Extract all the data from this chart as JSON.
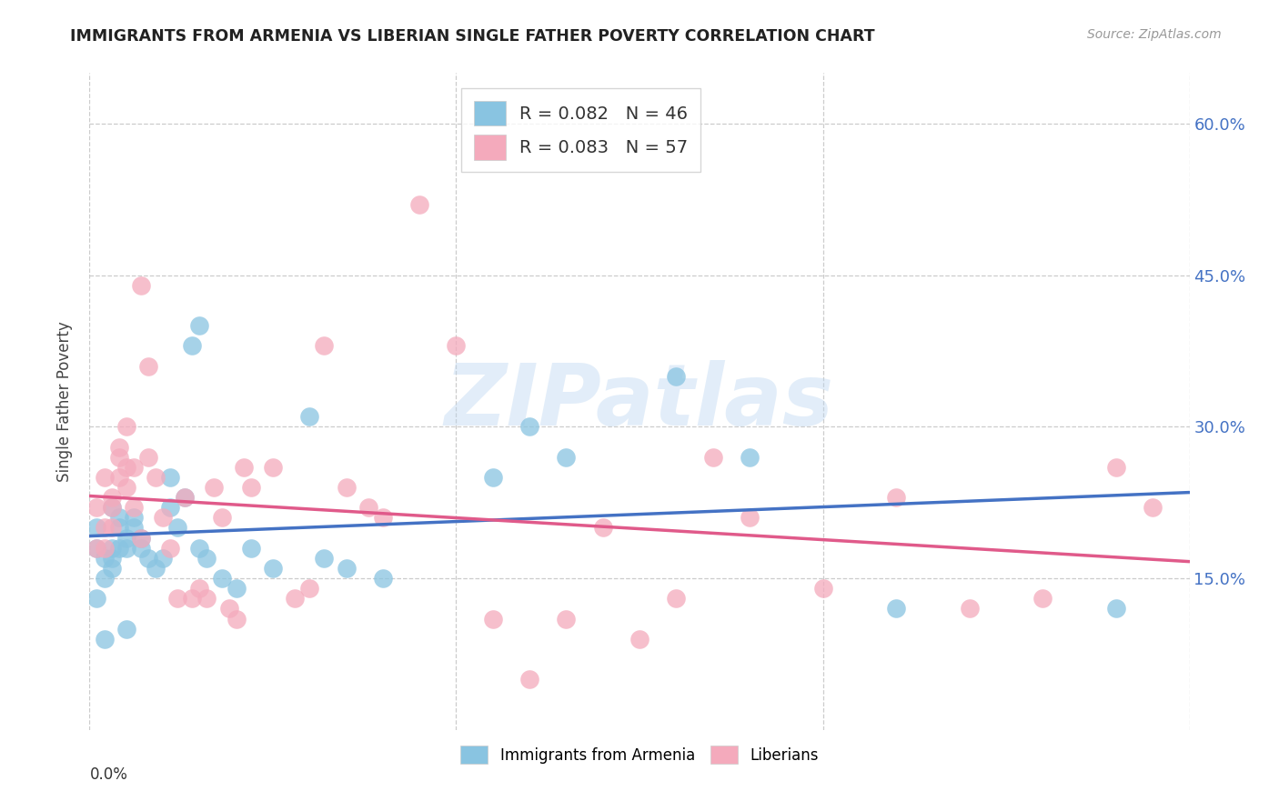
{
  "title": "IMMIGRANTS FROM ARMENIA VS LIBERIAN SINGLE FATHER POVERTY CORRELATION CHART",
  "source": "Source: ZipAtlas.com",
  "ylabel": "Single Father Poverty",
  "yaxis_labels": [
    "15.0%",
    "30.0%",
    "45.0%",
    "60.0%"
  ],
  "yaxis_values": [
    0.15,
    0.3,
    0.45,
    0.6
  ],
  "xlim": [
    0.0,
    0.15
  ],
  "ylim": [
    0.0,
    0.65
  ],
  "color_armenia": "#89c4e1",
  "color_liberian": "#f4aabc",
  "color_armenia_line": "#4472c4",
  "color_liberian_line": "#e05a8a",
  "color_axis_labels": "#4472c4",
  "watermark_text": "ZIPatlas",
  "legend_entries": [
    {
      "color": "#89c4e1",
      "label": "R = 0.082   N = 46"
    },
    {
      "color": "#f4aabc",
      "label": "R = 0.083   N = 57"
    }
  ],
  "bottom_legend": [
    {
      "color": "#89c4e1",
      "label": "Immigrants from Armenia"
    },
    {
      "color": "#f4aabc",
      "label": "Liberians"
    }
  ],
  "armenia_x": [
    0.001,
    0.001,
    0.001,
    0.002,
    0.002,
    0.002,
    0.003,
    0.003,
    0.003,
    0.003,
    0.004,
    0.004,
    0.004,
    0.005,
    0.005,
    0.005,
    0.006,
    0.006,
    0.007,
    0.007,
    0.008,
    0.009,
    0.01,
    0.011,
    0.011,
    0.012,
    0.013,
    0.014,
    0.015,
    0.015,
    0.016,
    0.018,
    0.02,
    0.022,
    0.025,
    0.03,
    0.032,
    0.035,
    0.04,
    0.055,
    0.06,
    0.065,
    0.08,
    0.09,
    0.11,
    0.14
  ],
  "armenia_y": [
    0.2,
    0.18,
    0.13,
    0.17,
    0.15,
    0.09,
    0.18,
    0.17,
    0.16,
    0.22,
    0.2,
    0.18,
    0.21,
    0.1,
    0.18,
    0.19,
    0.2,
    0.21,
    0.19,
    0.18,
    0.17,
    0.16,
    0.17,
    0.22,
    0.25,
    0.2,
    0.23,
    0.38,
    0.4,
    0.18,
    0.17,
    0.15,
    0.14,
    0.18,
    0.16,
    0.31,
    0.17,
    0.16,
    0.15,
    0.25,
    0.3,
    0.27,
    0.35,
    0.27,
    0.12,
    0.12
  ],
  "liberian_x": [
    0.001,
    0.001,
    0.002,
    0.002,
    0.002,
    0.003,
    0.003,
    0.003,
    0.004,
    0.004,
    0.004,
    0.005,
    0.005,
    0.005,
    0.006,
    0.006,
    0.007,
    0.007,
    0.008,
    0.008,
    0.009,
    0.01,
    0.011,
    0.012,
    0.013,
    0.014,
    0.015,
    0.016,
    0.017,
    0.018,
    0.019,
    0.02,
    0.021,
    0.022,
    0.025,
    0.028,
    0.03,
    0.032,
    0.035,
    0.038,
    0.04,
    0.045,
    0.05,
    0.055,
    0.06,
    0.065,
    0.07,
    0.075,
    0.08,
    0.085,
    0.09,
    0.1,
    0.11,
    0.12,
    0.13,
    0.14,
    0.145
  ],
  "liberian_y": [
    0.18,
    0.22,
    0.2,
    0.25,
    0.18,
    0.22,
    0.23,
    0.2,
    0.25,
    0.27,
    0.28,
    0.24,
    0.26,
    0.3,
    0.22,
    0.26,
    0.19,
    0.44,
    0.27,
    0.36,
    0.25,
    0.21,
    0.18,
    0.13,
    0.23,
    0.13,
    0.14,
    0.13,
    0.24,
    0.21,
    0.12,
    0.11,
    0.26,
    0.24,
    0.26,
    0.13,
    0.14,
    0.38,
    0.24,
    0.22,
    0.21,
    0.52,
    0.38,
    0.11,
    0.05,
    0.11,
    0.2,
    0.09,
    0.13,
    0.27,
    0.21,
    0.14,
    0.23,
    0.12,
    0.13,
    0.26,
    0.22
  ]
}
